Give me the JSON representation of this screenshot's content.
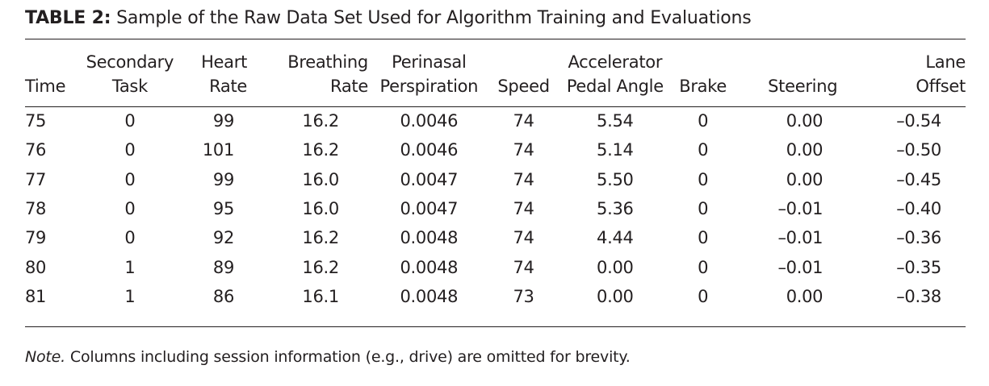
{
  "caption": {
    "label": "TABLE 2:",
    "text": "Sample of the Raw Data Set Used for Algorithm Training and Evaluations"
  },
  "headers": [
    {
      "line1": "",
      "line2": "Time"
    },
    {
      "line1": "Secondary",
      "line2": "Task"
    },
    {
      "line1": "Heart",
      "line2": "Rate"
    },
    {
      "line1": "Breathing",
      "line2": "Rate"
    },
    {
      "line1": "Perinasal",
      "line2": "Perspiration"
    },
    {
      "line1": "",
      "line2": "Speed"
    },
    {
      "line1": "Accelerator",
      "line2": "Pedal Angle"
    },
    {
      "line1": "",
      "line2": "Brake"
    },
    {
      "line1": "",
      "line2": "Steering"
    },
    {
      "line1": "Lane",
      "line2": "Offset"
    }
  ],
  "rows": [
    [
      "75",
      "0",
      "99",
      "16.2",
      "0.0046",
      "74",
      "5.54",
      "0",
      "0.00",
      "–0.54"
    ],
    [
      "76",
      "0",
      "101",
      "16.2",
      "0.0046",
      "74",
      "5.14",
      "0",
      "0.00",
      "–0.50"
    ],
    [
      "77",
      "0",
      "99",
      "16.0",
      "0.0047",
      "74",
      "5.50",
      "0",
      "0.00",
      "–0.45"
    ],
    [
      "78",
      "0",
      "95",
      "16.0",
      "0.0047",
      "74",
      "5.36",
      "0",
      "–0.01",
      "–0.40"
    ],
    [
      "79",
      "0",
      "92",
      "16.2",
      "0.0048",
      "74",
      "4.44",
      "0",
      "–0.01",
      "–0.36"
    ],
    [
      "80",
      "1",
      "89",
      "16.2",
      "0.0048",
      "74",
      "0.00",
      "0",
      "–0.01",
      "–0.35"
    ],
    [
      "81",
      "1",
      "86",
      "16.1",
      "0.0048",
      "73",
      "0.00",
      "0",
      "0.00",
      "–0.38"
    ]
  ],
  "note": {
    "label": "Note.",
    "text": "Columns including session information (e.g., drive) are omitted for brevity."
  }
}
